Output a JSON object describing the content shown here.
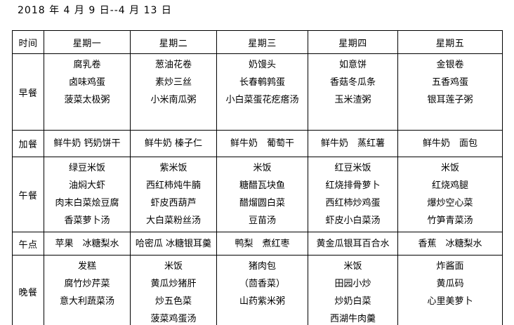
{
  "title": "2018 年 4 月 9 日--4 月 13 日",
  "colors": {
    "background": "#ffffff",
    "text": "#000000",
    "border": "#000000"
  },
  "table": {
    "headers": [
      "时间",
      "星期一",
      "星期二",
      "星期三",
      "星期四",
      "星期五"
    ],
    "rows": [
      {
        "label": "早餐",
        "cells": [
          [
            "腐乳卷",
            "卤味鸡蛋",
            "菠菜太极粥"
          ],
          [
            "葱油花卷",
            "素炒三丝",
            "小米南瓜粥"
          ],
          [
            "奶馒头",
            "长春鹌鹑蛋",
            "小白菜蛋花疙瘩汤"
          ],
          [
            "如意饼",
            "香菇冬瓜条",
            "玉米渣粥"
          ],
          [
            "金银卷",
            "五香鸡蛋",
            "银耳莲子粥"
          ]
        ]
      },
      {
        "label": "加餐",
        "cells": [
          [
            "鲜牛奶 钙奶饼干"
          ],
          [
            "鲜牛奶 榛子仁"
          ],
          [
            "鲜牛奶　葡萄干"
          ],
          [
            "鲜牛奶　蒸红薯"
          ],
          [
            "鲜牛奶　面包"
          ]
        ]
      },
      {
        "label": "午餐",
        "cells": [
          [
            "绿豆米饭",
            "油焖大虾",
            "肉末白菜烩豆腐",
            "香菜萝卜汤"
          ],
          [
            "紫米饭",
            "西红柿炖牛腩",
            "虾皮西葫芦",
            "大白菜粉丝汤"
          ],
          [
            "米饭",
            "糖醋瓦块鱼",
            "醋熘圆白菜",
            "豆苗汤"
          ],
          [
            "红豆米饭",
            "红烧排骨萝卜",
            "西红柿炒鸡蛋",
            "虾皮小白菜汤"
          ],
          [
            "米饭",
            "红烧鸡腿",
            "爆炒空心菜",
            "竹笋青菜汤"
          ]
        ]
      },
      {
        "label": "午点",
        "cells": [
          [
            "苹果　冰糖梨水"
          ],
          [
            "哈密瓜 冰糖银耳羹"
          ],
          [
            "鸭梨　煮红枣"
          ],
          [
            "黄金瓜银耳百合水"
          ],
          [
            "香蕉　冰糖梨水"
          ]
        ]
      },
      {
        "label": "晚餐",
        "cells": [
          [
            "发糕",
            "腐竹炒芹菜",
            "意大利蔬菜汤"
          ],
          [
            "米饭",
            "黄瓜炒猪肝",
            "炒五色菜",
            "菠菜鸡蛋汤"
          ],
          [
            "猪肉包",
            "（茴香菜）",
            "山药紫米粥"
          ],
          [
            "米饭",
            "田园小炒",
            "炒奶白菜",
            "西湖牛肉羹"
          ],
          [
            "炸酱面",
            "黄瓜码",
            "心里美萝卜"
          ]
        ]
      }
    ]
  }
}
